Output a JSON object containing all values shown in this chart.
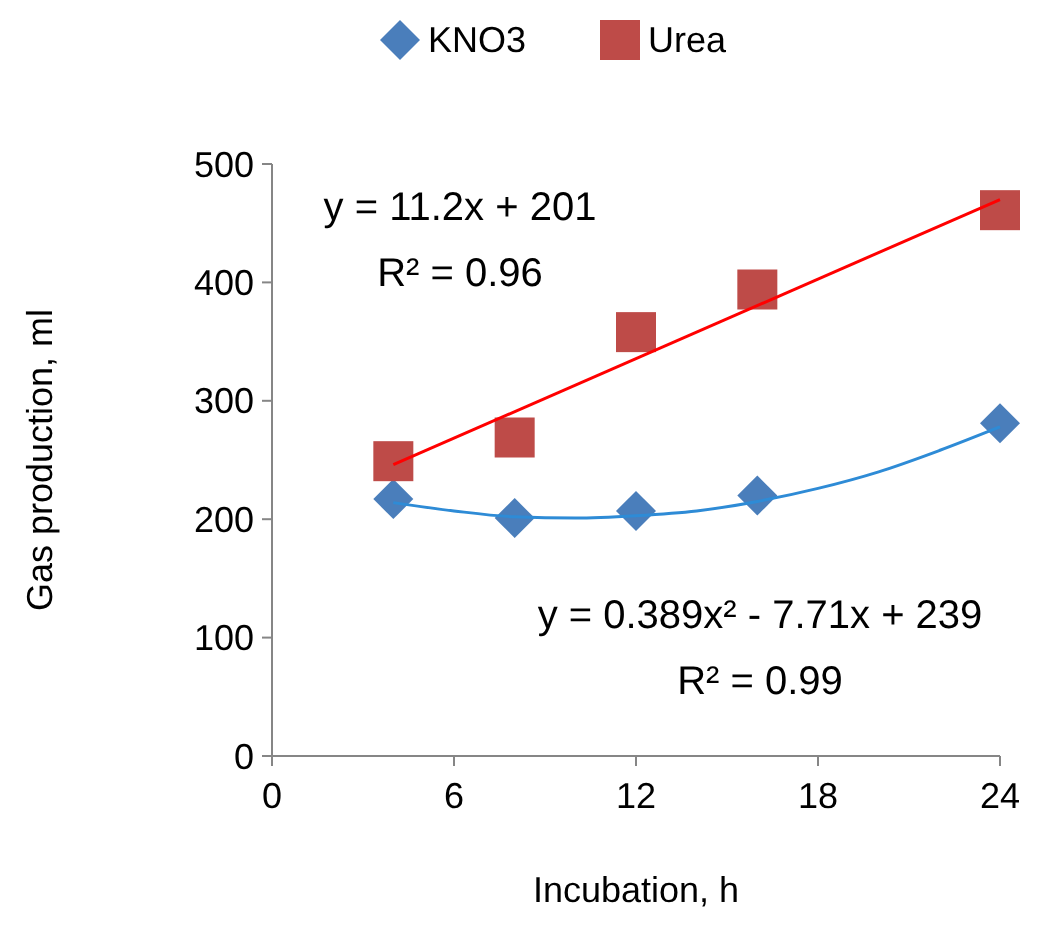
{
  "chart_data": {
    "type": "scatter",
    "xlabel": "Incubation, h",
    "ylabel": "Gas production, ml",
    "xlim": [
      0,
      24
    ],
    "xticks": [
      0,
      6,
      12,
      18,
      24
    ],
    "ylim": [
      0,
      500
    ],
    "yticks": [
      0,
      100,
      200,
      300,
      400,
      500
    ],
    "grid": false,
    "legend": "top",
    "series": [
      {
        "name": "KNO3",
        "marker": "diamond",
        "color": "#4a7ebb",
        "x": [
          4,
          8,
          12,
          16,
          24
        ],
        "values": [
          217,
          201,
          207,
          220,
          281
        ]
      },
      {
        "name": "Urea",
        "marker": "square",
        "color": "#be4b48",
        "x": [
          4,
          8,
          12,
          16,
          24
        ],
        "values": [
          249,
          269,
          358,
          394,
          461
        ]
      },
      {
        "type": "line",
        "color": "#ff0000",
        "marker": "none",
        "x": [
          4,
          24
        ],
        "values": [
          246,
          470
        ]
      },
      {
        "type": "line",
        "color": "#2e8bd6",
        "marker": "none",
        "x": [
          4,
          6,
          8,
          10,
          12,
          14,
          16,
          18,
          20,
          22,
          24
        ],
        "values": [
          214,
          207,
          202,
          201,
          203,
          207,
          215,
          226,
          240,
          258,
          278
        ]
      }
    ],
    "annotations": [
      "y = 11.2x + 201",
      "R² = 0.96",
      "y = 0.389x² - 7.71x + 239",
      "R² = 0.99"
    ]
  }
}
